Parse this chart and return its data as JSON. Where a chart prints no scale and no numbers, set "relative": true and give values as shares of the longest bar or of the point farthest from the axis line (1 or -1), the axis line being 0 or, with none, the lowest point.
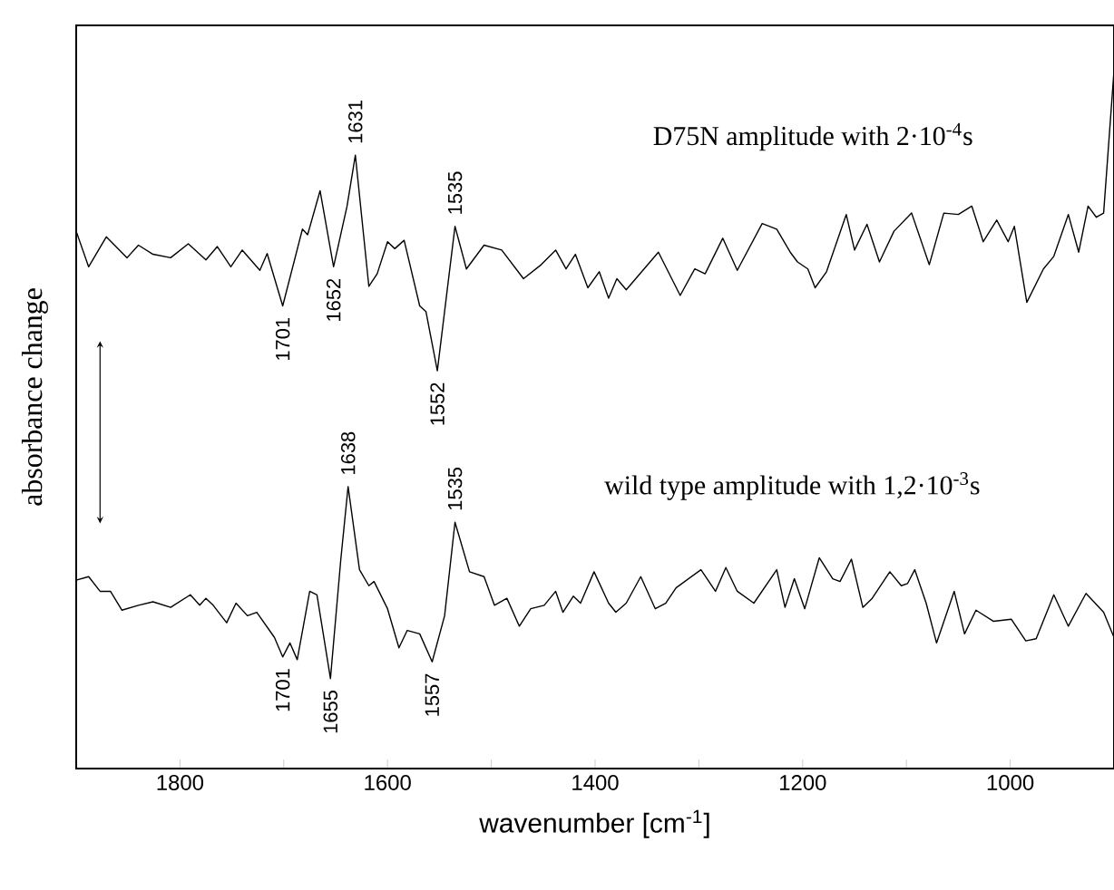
{
  "chart_data": {
    "type": "line",
    "relative": true,
    "xlabel": "wavenumber [cm$^{-1}$]",
    "ylabel": "absorbance change",
    "xlim": [
      1900,
      900
    ],
    "xticks": [
      1800,
      {
        "value": 1700,
        "label": null
      },
      1600,
      {
        "value": 1500,
        "label": null
      },
      1400,
      {
        "value": 1300,
        "label": null
      },
      1200,
      {
        "value": 1100,
        "label": null
      },
      1000
    ],
    "series": [
      {
        "name": "D75N amplitude with 2·10$^{-4}$s",
        "color": "#000000",
        "x": [
          1900,
          1888,
          1871,
          1851,
          1840,
          1826,
          1809,
          1792,
          1775,
          1764,
          1751,
          1740,
          1723,
          1716,
          1701,
          1682,
          1677,
          1665,
          1652,
          1639,
          1631,
          1618,
          1610,
          1600,
          1593,
          1584,
          1569,
          1563,
          1552,
          1535,
          1524,
          1507,
          1490,
          1469,
          1452,
          1438,
          1428,
          1419,
          1407,
          1396,
          1387,
          1379,
          1370,
          1339,
          1318,
          1304,
          1294,
          1277,
          1263,
          1239,
          1225,
          1212,
          1205,
          1195,
          1188,
          1177,
          1158,
          1150,
          1138,
          1126,
          1112,
          1095,
          1078,
          1064,
          1050,
          1037,
          1026,
          1013,
          1002,
          996,
          984,
          968,
          958,
          944,
          934,
          925,
          917,
          910,
          900
        ],
        "values": [
          0.77,
          0.719,
          0.762,
          0.732,
          0.75,
          0.737,
          0.732,
          0.752,
          0.729,
          0.748,
          0.719,
          0.743,
          0.714,
          0.738,
          0.663,
          0.773,
          0.765,
          0.828,
          0.719,
          0.806,
          0.879,
          0.691,
          0.709,
          0.755,
          0.745,
          0.757,
          0.663,
          0.655,
          0.57,
          0.777,
          0.716,
          0.75,
          0.743,
          0.702,
          0.722,
          0.743,
          0.716,
          0.737,
          0.689,
          0.712,
          0.674,
          0.702,
          0.686,
          0.74,
          0.678,
          0.716,
          0.709,
          0.76,
          0.714,
          0.781,
          0.773,
          0.74,
          0.726,
          0.716,
          0.689,
          0.712,
          0.794,
          0.743,
          0.78,
          0.726,
          0.77,
          0.796,
          0.722,
          0.796,
          0.794,
          0.806,
          0.755,
          0.786,
          0.755,
          0.777,
          0.668,
          0.716,
          0.734,
          0.794,
          0.74,
          0.806,
          0.79,
          0.796,
          1
        ]
      },
      {
        "name": "wild type amplitude with 1,2·10$^{-3}$s",
        "color": "#000000",
        "x": [
          1900,
          1888,
          1877,
          1867,
          1856,
          1840,
          1826,
          1809,
          1790,
          1781,
          1775,
          1768,
          1755,
          1746,
          1735,
          1726,
          1709,
          1701,
          1694,
          1687,
          1675,
          1668,
          1655,
          1645,
          1638,
          1627,
          1618,
          1613,
          1600,
          1589,
          1581,
          1569,
          1557,
          1545,
          1535,
          1521,
          1507,
          1497,
          1485,
          1473,
          1462,
          1449,
          1438,
          1431,
          1421,
          1414,
          1401,
          1387,
          1380,
          1370,
          1356,
          1342,
          1332,
          1322,
          1298,
          1284,
          1274,
          1263,
          1247,
          1225,
          1217,
          1208,
          1198,
          1184,
          1171,
          1164,
          1153,
          1142,
          1133,
          1116,
          1105,
          1099,
          1092,
          1081,
          1071,
          1054,
          1044,
          1033,
          1016,
          999,
          985,
          975,
          958,
          944,
          927,
          910,
          900
        ],
        "values": [
          0.27,
          0.275,
          0.254,
          0.254,
          0.227,
          0.234,
          0.239,
          0.231,
          0.249,
          0.234,
          0.244,
          0.234,
          0.209,
          0.237,
          0.219,
          0.224,
          0.188,
          0.16,
          0.18,
          0.156,
          0.254,
          0.249,
          0.129,
          0.3,
          0.404,
          0.285,
          0.262,
          0.268,
          0.229,
          0.173,
          0.198,
          0.193,
          0.153,
          0.219,
          0.353,
          0.282,
          0.275,
          0.234,
          0.244,
          0.204,
          0.229,
          0.234,
          0.254,
          0.224,
          0.247,
          0.237,
          0.282,
          0.237,
          0.224,
          0.237,
          0.275,
          0.229,
          0.237,
          0.259,
          0.285,
          0.254,
          0.288,
          0.254,
          0.237,
          0.285,
          0.231,
          0.272,
          0.229,
          0.302,
          0.272,
          0.268,
          0.3,
          0.231,
          0.244,
          0.282,
          0.262,
          0.265,
          0.285,
          0.237,
          0.18,
          0.254,
          0.193,
          0.227,
          0.211,
          0.214,
          0.183,
          0.186,
          0.249,
          0.204,
          0.251,
          0.224,
          0.188
        ]
      }
    ],
    "annotations": [
      {
        "text": "1701",
        "x": 1701,
        "y": 0.663
      },
      {
        "text": "1652",
        "x": 1652,
        "y": 0.719
      },
      {
        "text": "1631",
        "x": 1631,
        "y": 0.879
      },
      {
        "text": "1552",
        "x": 1552,
        "y": 0.57
      },
      {
        "text": "1535",
        "x": 1535,
        "y": 0.777
      },
      {
        "text": "1701",
        "x": 1701,
        "y": 0.16
      },
      {
        "text": "1655",
        "x": 1655,
        "y": 0.129
      },
      {
        "text": "1638",
        "x": 1638,
        "y": 0.404
      },
      {
        "text": "1557",
        "x": 1557,
        "y": 0.153
      },
      {
        "text": "1535",
        "x": 1535,
        "y": 0.353
      }
    ]
  }
}
